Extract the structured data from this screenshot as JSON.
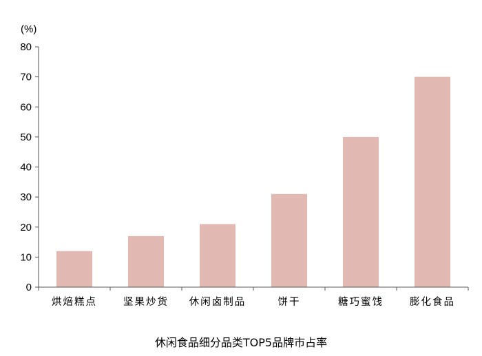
{
  "chart_data": {
    "type": "bar",
    "title": "休闲食品细分品类TOP5品牌市占率",
    "ylabel": "(%)",
    "xlabel": "",
    "categories": [
      "烘焙糕点",
      "坚果炒货",
      "休闲卤制品",
      "饼干",
      "糖巧蜜饯",
      "膨化食品"
    ],
    "values": [
      12,
      17,
      21,
      31,
      50,
      70
    ],
    "ylim": [
      0,
      80
    ],
    "yticks": [
      0,
      10,
      20,
      30,
      40,
      50,
      60,
      70,
      80
    ],
    "grid": false,
    "legend": "none",
    "bar_color": "#e2b8b3"
  }
}
